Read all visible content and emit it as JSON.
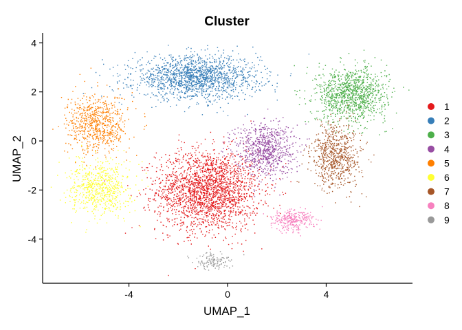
{
  "chart_data": {
    "type": "scatter",
    "title": "Cluster",
    "xlabel": "UMAP_1",
    "ylabel": "UMAP_2",
    "xlim": [
      -7.5,
      7.5
    ],
    "ylim": [
      -5.8,
      4.4
    ],
    "xticks": [
      -4,
      0,
      4
    ],
    "yticks": [
      -4,
      -2,
      0,
      2,
      4
    ],
    "grid": false,
    "legend_position": "right",
    "series": [
      {
        "name": "1",
        "color": "#E41A1C",
        "center": [
          -0.8,
          -2.0
        ],
        "spread": [
          1.9,
          1.5
        ],
        "count": 2200
      },
      {
        "name": "2",
        "color": "#377EB8",
        "center": [
          -1.3,
          2.6
        ],
        "spread": [
          2.3,
          0.8
        ],
        "count": 1600
      },
      {
        "name": "3",
        "color": "#4DAF4A",
        "center": [
          5.0,
          1.9
        ],
        "spread": [
          1.3,
          1.0
        ],
        "count": 1100
      },
      {
        "name": "4",
        "color": "#984EA3",
        "center": [
          1.5,
          -0.3
        ],
        "spread": [
          1.1,
          1.0
        ],
        "count": 800
      },
      {
        "name": "5",
        "color": "#FF7F00",
        "center": [
          -5.3,
          0.7
        ],
        "spread": [
          1.1,
          1.1
        ],
        "count": 700
      },
      {
        "name": "6",
        "color": "#FFFF33",
        "center": [
          -5.2,
          -1.9
        ],
        "spread": [
          1.1,
          1.0
        ],
        "count": 650
      },
      {
        "name": "7",
        "color": "#A65628",
        "center": [
          4.4,
          -0.6
        ],
        "spread": [
          0.9,
          1.2
        ],
        "count": 700
      },
      {
        "name": "8",
        "color": "#F781BF",
        "center": [
          2.6,
          -3.2
        ],
        "spread": [
          0.8,
          0.4
        ],
        "count": 300
      },
      {
        "name": "9",
        "color": "#999999",
        "center": [
          -0.6,
          -4.9
        ],
        "spread": [
          0.7,
          0.3
        ],
        "count": 120
      }
    ]
  }
}
